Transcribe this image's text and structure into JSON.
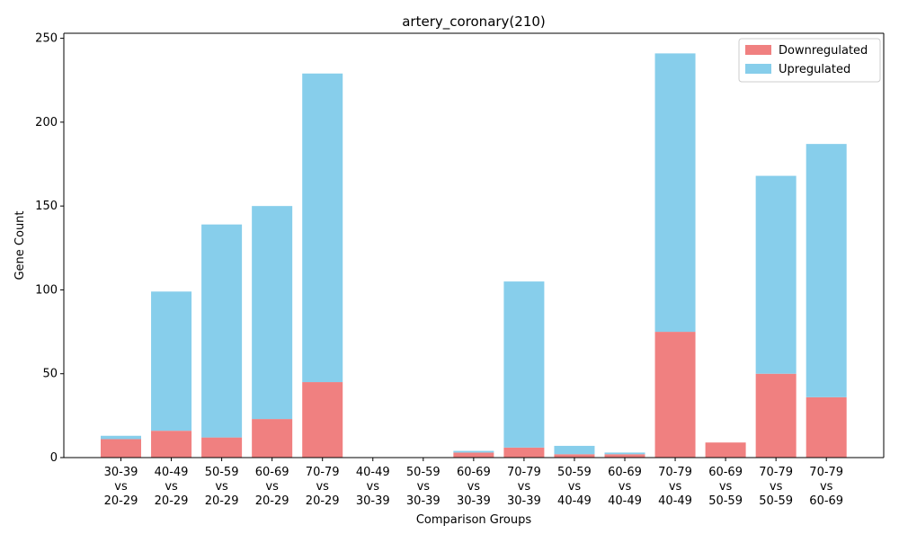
{
  "chart_data": {
    "type": "bar",
    "stacked": true,
    "title": "artery_coronary(210)",
    "xlabel": "Comparison Groups",
    "ylabel": "Gene Count",
    "ylim": [
      0,
      253
    ],
    "yticks": [
      0,
      50,
      100,
      150,
      200,
      250
    ],
    "grid": false,
    "legend_position": "top-right",
    "categories": [
      [
        "30-39",
        "vs",
        "20-29"
      ],
      [
        "40-49",
        "vs",
        "20-29"
      ],
      [
        "50-59",
        "vs",
        "20-29"
      ],
      [
        "60-69",
        "vs",
        "20-29"
      ],
      [
        "70-79",
        "vs",
        "20-29"
      ],
      [
        "40-49",
        "vs",
        "30-39"
      ],
      [
        "50-59",
        "vs",
        "30-39"
      ],
      [
        "60-69",
        "vs",
        "30-39"
      ],
      [
        "70-79",
        "vs",
        "30-39"
      ],
      [
        "50-59",
        "vs",
        "40-49"
      ],
      [
        "60-69",
        "vs",
        "40-49"
      ],
      [
        "70-79",
        "vs",
        "40-49"
      ],
      [
        "60-69",
        "vs",
        "50-59"
      ],
      [
        "70-79",
        "vs",
        "50-59"
      ],
      [
        "70-79",
        "vs",
        "60-69"
      ]
    ],
    "series": [
      {
        "name": "Downregulated",
        "color": "#f08080",
        "values": [
          11,
          16,
          12,
          23,
          45,
          0,
          0,
          3,
          6,
          2,
          2,
          75,
          9,
          50,
          36
        ]
      },
      {
        "name": "Upregulated",
        "color": "#87ceeb",
        "values": [
          2,
          83,
          127,
          127,
          184,
          0,
          0,
          1,
          99,
          5,
          1,
          166,
          0,
          118,
          151
        ]
      }
    ]
  }
}
